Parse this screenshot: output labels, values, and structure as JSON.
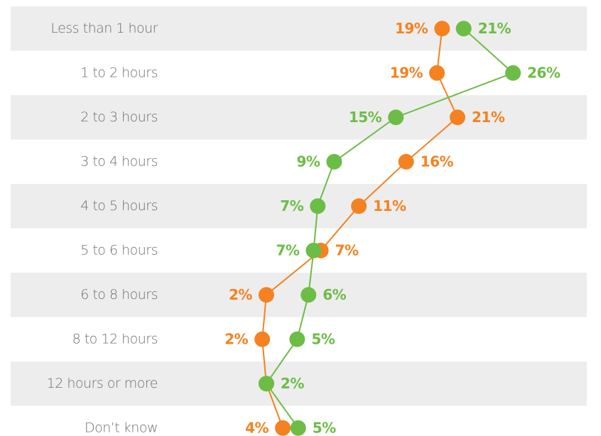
{
  "chart_data": {
    "type": "dot-line",
    "categories": [
      "Less than 1 hour",
      "1 to 2 hours",
      "2 to 3 hours",
      "3 to 4 hours",
      "4 to 5 hours",
      "5 to 6 hours",
      "6 to 8 hours",
      "8 to 12 hours",
      "12 hours or more",
      "Don’t know"
    ],
    "series": [
      {
        "color": "#f58220",
        "values": [
          19.1,
          18.6,
          20.6,
          15.6,
          11,
          7.3,
          2,
          1.6,
          2,
          3.6
        ],
        "value_labels": [
          "19%",
          "19%",
          "21%",
          "16%",
          "11%",
          "7%",
          "2%",
          "2%",
          null,
          "4%"
        ]
      },
      {
        "color": "#6cbd45",
        "values": [
          21.2,
          26,
          14.6,
          8.6,
          7,
          6.6,
          6.1,
          5,
          2,
          5.1
        ],
        "value_labels": [
          "21%",
          "26%",
          "15%",
          "9%",
          "7%",
          "7%",
          "6%",
          "5%",
          "2%",
          "5%"
        ]
      }
    ],
    "xlim": [
      0,
      30
    ]
  }
}
